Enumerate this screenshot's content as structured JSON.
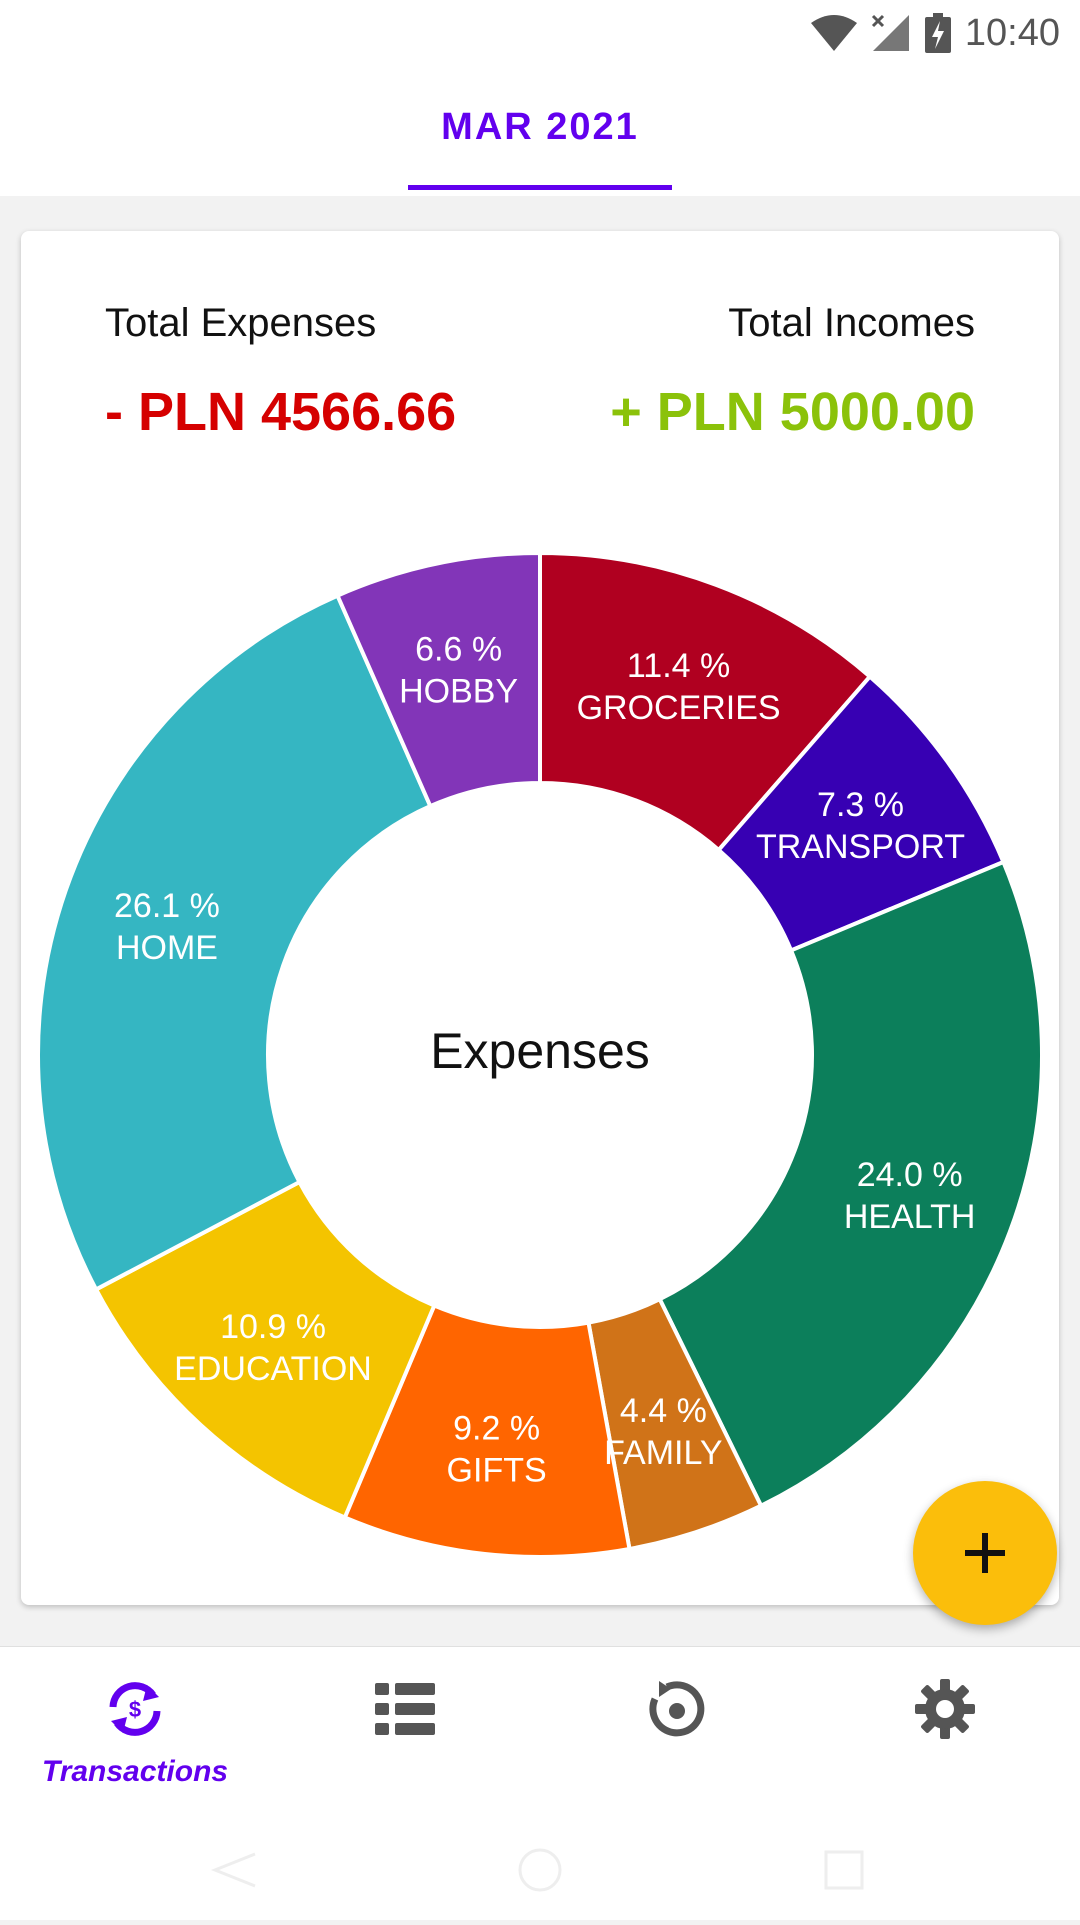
{
  "status_bar": {
    "time": "10:40",
    "icons": [
      "wifi-icon",
      "signal-icon",
      "battery-charging-icon"
    ]
  },
  "header": {
    "month_tab": "MAR 2021"
  },
  "summary": {
    "expenses_label": "Total Expenses",
    "expenses_value": "- PLN 4566.66",
    "incomes_label": "Total Incomes",
    "incomes_value": "+ PLN 5000.00"
  },
  "chart_data": {
    "type": "pie",
    "donut": true,
    "center_label": "Expenses",
    "slices": [
      {
        "label": "GROCERIES",
        "percent_text": "11.4 %",
        "value": 11.4,
        "color": "#b00020"
      },
      {
        "label": "TRANSPORT",
        "percent_text": "7.3 %",
        "value": 7.3,
        "color": "#3700b3"
      },
      {
        "label": "HEALTH",
        "percent_text": "24.0 %",
        "value": 24.0,
        "color": "#0c7f5b"
      },
      {
        "label": "FAMILY",
        "percent_text": "4.4 %",
        "value": 4.4,
        "color": "#d07318"
      },
      {
        "label": "GIFTS",
        "percent_text": "9.2 %",
        "value": 9.2,
        "color": "#ff6500"
      },
      {
        "label": "EDUCATION",
        "percent_text": "10.9 %",
        "value": 10.9,
        "color": "#f4c400"
      },
      {
        "label": "HOME",
        "percent_text": "26.1 %",
        "value": 26.1,
        "color": "#35b6c2"
      },
      {
        "label": "HOBBY",
        "percent_text": "6.6 %",
        "value": 6.6,
        "color": "#8235b8"
      }
    ]
  },
  "fab": {
    "icon": "plus-icon",
    "color": "#fbbe0b"
  },
  "bottom_nav": {
    "items": [
      {
        "icon": "transactions-icon",
        "label": "Transactions",
        "active": true
      },
      {
        "icon": "list-icon",
        "label": "",
        "active": false
      },
      {
        "icon": "history-icon",
        "label": "",
        "active": false
      },
      {
        "icon": "settings-icon",
        "label": "",
        "active": false
      }
    ]
  },
  "colors": {
    "accent": "#6200ee",
    "expense": "#d50000",
    "income": "#8bc20a"
  }
}
